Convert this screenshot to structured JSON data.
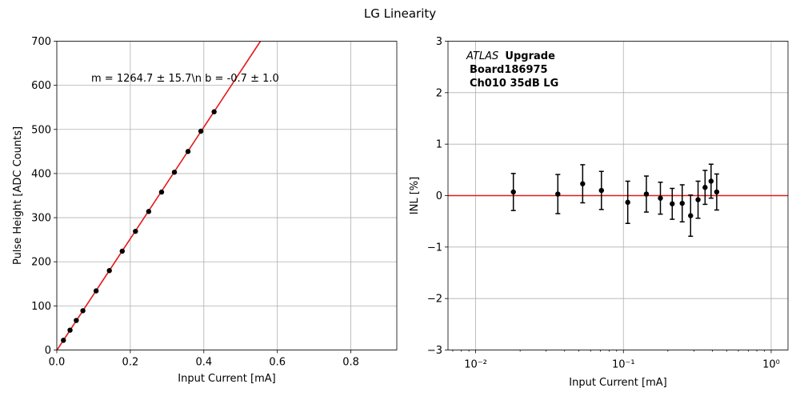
{
  "figure": {
    "title": "LG Linearity"
  },
  "chart_data": [
    {
      "type": "scatter",
      "panel": "left",
      "xlabel": "Input Current [mA]",
      "ylabel": "Pulse Height [ADC Counts]",
      "xlim": [
        0,
        0.925
      ],
      "ylim": [
        0,
        700
      ],
      "xticks": [
        0.0,
        0.2,
        0.4,
        0.6,
        0.8
      ],
      "xtick_labels": [
        "0.0",
        "0.2",
        "0.4",
        "0.6",
        "0.8"
      ],
      "yticks": [
        0,
        100,
        200,
        300,
        400,
        500,
        600,
        700
      ],
      "ytick_labels": [
        "0",
        "100",
        "200",
        "300",
        "400",
        "500",
        "600",
        "700"
      ],
      "grid": true,
      "annotation": "m = 1264.7 ± 15.7\\n b = -0.7 ± 1.0",
      "fit": {
        "slope": 1264.7,
        "intercept": -0.7,
        "color": "#e31a1c"
      },
      "series": [
        {
          "x": [
            0.018,
            0.036,
            0.053,
            0.071,
            0.107,
            0.143,
            0.178,
            0.214,
            0.25,
            0.285,
            0.32,
            0.357,
            0.392,
            0.428
          ],
          "y": [
            22,
            45,
            67,
            89,
            134,
            180,
            224,
            269,
            314,
            358,
            403,
            450,
            496,
            540
          ],
          "color": "#000000"
        }
      ]
    },
    {
      "type": "scatter",
      "panel": "right",
      "xscale": "log",
      "xlabel": "Input Current [mA]",
      "ylabel": "INL [%]",
      "xlim": [
        0.0065,
        1.3
      ],
      "ylim": [
        -3,
        3
      ],
      "xticks": [
        0.01,
        0.1,
        1
      ],
      "xtick_labels": [
        "10⁻²",
        "10⁻¹",
        "10⁰"
      ],
      "yticks": [
        -3,
        -2,
        -1,
        0,
        1,
        2,
        3
      ],
      "ytick_labels": [
        "−3",
        "−2",
        "−1",
        "0",
        "1",
        "2",
        "3"
      ],
      "grid": true,
      "reference_line": {
        "y": 0,
        "color": "#e31a1c"
      },
      "annotation": {
        "line1_italic": "ATLAS",
        "line1_bold": "Upgrade",
        "line2": "Board186975",
        "line3": "Ch010 35dB LG"
      },
      "series": [
        {
          "x": [
            0.018,
            0.036,
            0.053,
            0.071,
            0.107,
            0.143,
            0.178,
            0.214,
            0.25,
            0.285,
            0.32,
            0.357,
            0.392,
            0.428
          ],
          "y": [
            0.07,
            0.03,
            0.23,
            0.1,
            -0.13,
            0.03,
            -0.05,
            -0.16,
            -0.15,
            -0.39,
            -0.08,
            0.16,
            0.28,
            0.07
          ],
          "yerr": [
            0.36,
            0.38,
            0.37,
            0.37,
            0.41,
            0.35,
            0.31,
            0.3,
            0.36,
            0.4,
            0.36,
            0.33,
            0.33,
            0.35
          ],
          "color": "#000000"
        }
      ]
    }
  ]
}
